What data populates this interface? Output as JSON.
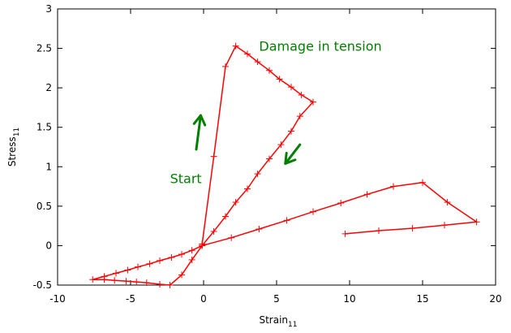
{
  "chart_data": {
    "type": "line",
    "title": "",
    "xlabel": "Strain",
    "xlabel_sub": "11",
    "ylabel": "Stress",
    "ylabel_sub": "11",
    "xlim": [
      -10,
      20
    ],
    "ylim": [
      -0.5,
      3
    ],
    "xticks": [
      -10,
      -5,
      0,
      5,
      10,
      15,
      20
    ],
    "yticks": [
      -0.5,
      0,
      0.5,
      1,
      1.5,
      2,
      2.5,
      3
    ],
    "ytick_labels": [
      "-0.5",
      "0",
      "0.5",
      "1",
      "1.5",
      "2",
      "2.5",
      "3"
    ],
    "grid": false,
    "legend": "none",
    "series": [
      {
        "color": "#ff0000",
        "marker": "plus",
        "x": [
          -0.1,
          0.7,
          1.5,
          2.2,
          3.0,
          3.7,
          4.5,
          5.2,
          6.0,
          6.7,
          7.5,
          6.6,
          6.0,
          5.3,
          4.5,
          3.7,
          3.0,
          2.2,
          1.5,
          0.7,
          -0.1,
          -0.8,
          -1.5,
          -2.3,
          -3.0,
          -3.9,
          -4.6,
          -5.3,
          -6.1,
          -6.8,
          -7.6,
          -6.8,
          -6.0,
          -5.2,
          -4.5,
          -3.7,
          -3.0,
          -2.2,
          -1.5,
          -0.8,
          -0.1,
          1.9,
          3.8,
          5.7,
          7.5,
          9.4,
          11.2,
          13.0,
          15.0,
          16.7,
          18.7,
          16.5,
          14.3,
          12.0,
          9.7
        ],
        "y": [
          0.02,
          1.13,
          2.27,
          2.53,
          2.43,
          2.33,
          2.22,
          2.11,
          2.01,
          1.91,
          1.82,
          1.64,
          1.45,
          1.28,
          1.1,
          0.91,
          0.72,
          0.55,
          0.37,
          0.18,
          0.0,
          -0.18,
          -0.37,
          -0.5,
          -0.49,
          -0.47,
          -0.46,
          -0.45,
          -0.44,
          -0.43,
          -0.43,
          -0.39,
          -0.35,
          -0.31,
          -0.27,
          -0.23,
          -0.19,
          -0.15,
          -0.11,
          -0.06,
          0.0,
          0.1,
          0.21,
          0.32,
          0.43,
          0.54,
          0.65,
          0.75,
          0.8,
          0.55,
          0.3,
          0.26,
          0.22,
          0.19,
          0.15
        ]
      }
    ],
    "annotations": [
      {
        "text": "Damage in tension",
        "x": 3.8,
        "y": 2.47,
        "color": "#008000"
      },
      {
        "text": "Start",
        "x": -2.3,
        "y": 0.79,
        "color": "#008000"
      }
    ],
    "arrows": [
      {
        "direction": "up",
        "from": [
          -0.5,
          1.22
        ],
        "to": [
          -0.2,
          1.65
        ],
        "color": "#008000"
      },
      {
        "direction": "down-left",
        "from": [
          6.6,
          1.28
        ],
        "to": [
          5.6,
          1.04
        ],
        "color": "#008000"
      }
    ]
  }
}
